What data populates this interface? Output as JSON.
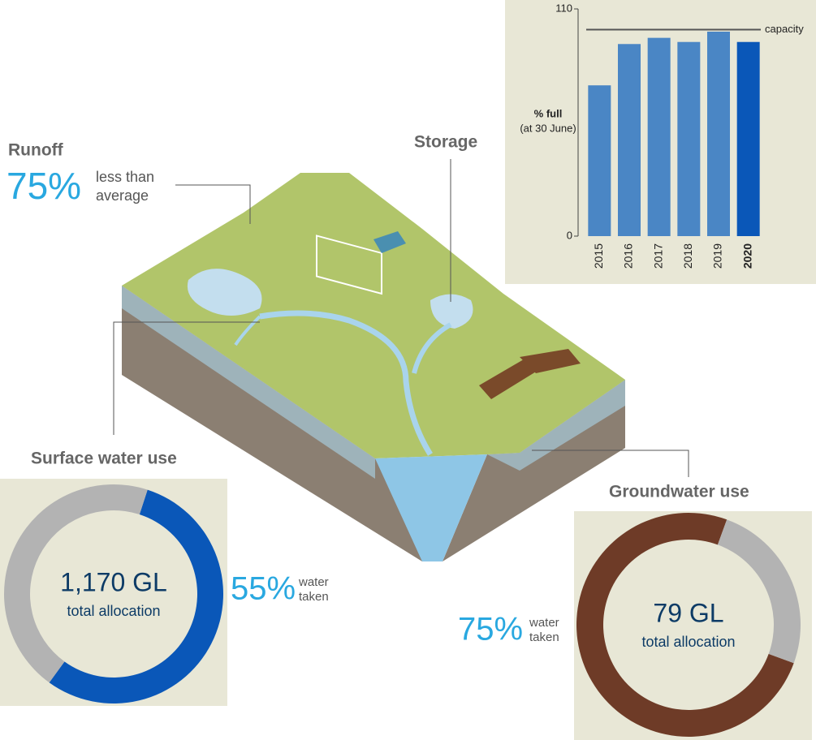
{
  "runoff": {
    "title": "Runoff",
    "figure": "75%",
    "note_lines": [
      "less than",
      "average"
    ]
  },
  "storage": {
    "title": "Storage"
  },
  "surface": {
    "title": "Surface water use"
  },
  "groundwater": {
    "title": "Groundwater use"
  },
  "chart_data": [
    {
      "type": "bar",
      "y_label_lines": [
        "% full",
        "(at 30 June)"
      ],
      "categories": [
        "2015",
        "2016",
        "2017",
        "2018",
        "2019",
        "2020"
      ],
      "values": [
        73,
        93,
        96,
        94,
        99,
        94
      ],
      "colors": [
        "#4a86c5",
        "#4a86c5",
        "#4a86c5",
        "#4a86c5",
        "#4a86c5",
        "#0a57b8"
      ],
      "highlight_category": "2020",
      "ylim": [
        0,
        110
      ],
      "yticks": [
        0,
        110
      ],
      "reference_line": {
        "value": 100,
        "label": "capacity"
      }
    },
    {
      "type": "pie",
      "center_lines": [
        "1,170 GL",
        "total allocation"
      ],
      "categories": [
        "water taken",
        null
      ],
      "values": [
        55,
        45
      ],
      "value_labels": [
        "55%",
        null
      ],
      "colors": [
        "#0a57b8",
        "#b3b3b3"
      ],
      "start_angle": 18
    },
    {
      "type": "pie",
      "center_lines": [
        "79 GL",
        "total allocation"
      ],
      "categories": [
        "water taken",
        null
      ],
      "values": [
        75,
        25
      ],
      "value_labels": [
        "75%",
        null
      ],
      "colors": [
        "#6e3b27",
        "#b3b3b3"
      ],
      "start_angle": 110
    }
  ]
}
